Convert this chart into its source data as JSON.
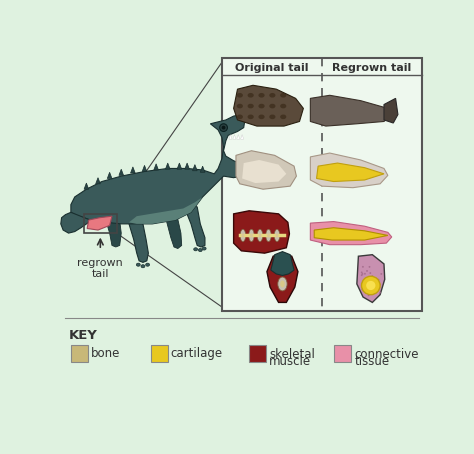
{
  "bg_color": "#dff2e0",
  "panel_bg": "#eef8ee",
  "panel_border": "#555555",
  "title_orig": "Original tail",
  "title_regrown": "Regrown tail",
  "label_regrown_tail": "regrown\ntail",
  "key_title": "KEY",
  "key_items": [
    {
      "label": "bone",
      "color": "#c8b878"
    },
    {
      "label": "cartilage",
      "color": "#e8c820"
    },
    {
      "label": "skeletal\nmuscle",
      "color": "#8b1a1a"
    },
    {
      "label": "connective\ntissue",
      "color": "#e890a8"
    }
  ],
  "croc_color": "#3a5a5a",
  "pink_tail_color": "#e87880",
  "dashed_line_color": "#555555",
  "font_color": "#333333",
  "ext_tail_color": "#5a5048",
  "bone_color": "#c8c0b0",
  "cartilage_color": "#e8c820",
  "muscle_color": "#8b1a1a",
  "connective_color": "#e890a8",
  "dark_teal": "#2a5050"
}
